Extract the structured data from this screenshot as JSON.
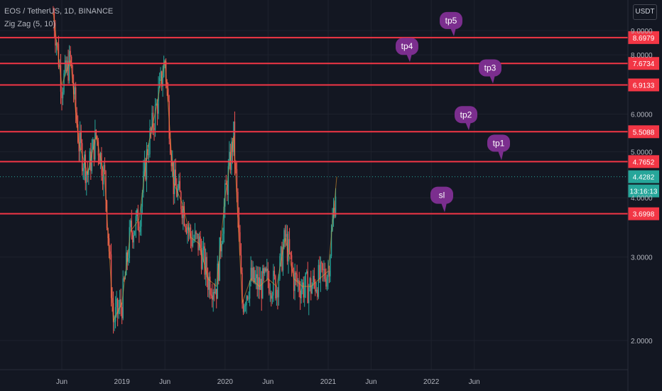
{
  "header": {
    "symbol_line": "EOS / TetherUS, 1D, BINANCE",
    "indicator": "Zig Zag (5, 10)"
  },
  "currency_label": "USDT",
  "colors": {
    "background": "#131722",
    "level_line": "#f23645",
    "last_price": "#26a69a",
    "up_candle": "#26a69a",
    "down_candle": "#ef5350",
    "zigzag": "#f0a030",
    "note_bubble": "#7b2e8e"
  },
  "chart_data": {
    "type": "candlestick",
    "scale": "log",
    "x_ticks": [
      "Jun",
      "2019",
      "Jun",
      "2020",
      "Jun",
      "2021",
      "Jun",
      "2022",
      "Jun"
    ],
    "y_ticks": [
      "2.0000",
      "3.0000",
      "4.0000",
      "5.0000",
      "6.0000",
      "8.0000",
      "9.0000"
    ],
    "ylim": [
      1.55,
      10.5
    ],
    "levels": [
      {
        "label": "8.6979",
        "value": 8.6979
      },
      {
        "label": "7.6734",
        "value": 7.6734
      },
      {
        "label": "6.9133",
        "value": 6.9133
      },
      {
        "label": "5.5088",
        "value": 5.5088
      },
      {
        "label": "4.7652",
        "value": 4.7652
      },
      {
        "label": "3.6998",
        "value": 3.6998
      }
    ],
    "notes": [
      {
        "text": "tp5",
        "level": 8.6979
      },
      {
        "text": "tp4",
        "level": 7.6734
      },
      {
        "text": "tp3",
        "level": 6.9133
      },
      {
        "text": "tp2",
        "level": 5.5088
      },
      {
        "text": "tp1",
        "level": 4.7652
      },
      {
        "text": "sl",
        "level": 3.6998
      }
    ],
    "last_price": {
      "value": 4.4282,
      "label": "4.4282",
      "countdown": "13:16:13"
    },
    "price_path": [
      [
        "2018-05",
        9.8
      ],
      [
        "2018-06",
        6.9
      ],
      [
        "2018-07",
        7.8
      ],
      [
        "2018-08",
        5.2
      ],
      [
        "2018-09",
        4.5
      ],
      [
        "2018-10",
        5.4
      ],
      [
        "2018-11",
        4.4
      ],
      [
        "2018-12",
        2.2
      ],
      [
        "2019-01",
        2.4
      ],
      [
        "2019-02",
        3.4
      ],
      [
        "2019-03",
        3.6
      ],
      [
        "2019-04",
        5.1
      ],
      [
        "2019-05",
        6.2
      ],
      [
        "2019-06",
        7.8
      ],
      [
        "2019-07",
        4.3
      ],
      [
        "2019-08",
        3.9
      ],
      [
        "2019-09",
        3.3
      ],
      [
        "2019-10",
        3.2
      ],
      [
        "2019-11",
        2.7
      ],
      [
        "2019-12",
        2.6
      ],
      [
        "2020-01",
        4.0
      ],
      [
        "2020-02",
        5.4
      ],
      [
        "2020-03",
        2.4
      ],
      [
        "2020-04",
        2.7
      ],
      [
        "2020-05",
        2.6
      ],
      [
        "2020-06",
        2.7
      ],
      [
        "2020-07",
        2.6
      ],
      [
        "2020-08",
        3.3
      ],
      [
        "2020-09",
        2.7
      ],
      [
        "2020-10",
        2.6
      ],
      [
        "2020-11",
        2.6
      ],
      [
        "2020-12",
        2.7
      ],
      [
        "2021-01",
        2.8
      ],
      [
        "2021-02",
        4.43
      ]
    ]
  }
}
